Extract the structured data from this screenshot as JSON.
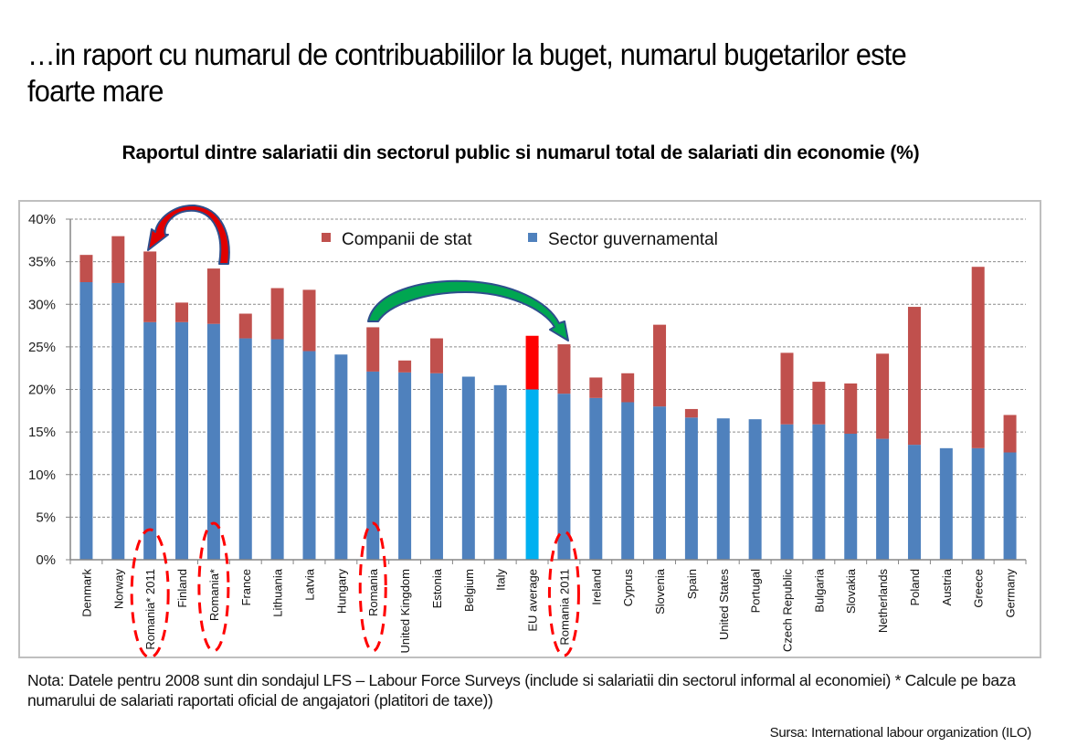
{
  "slide": {
    "title": "…in raport cu numarul de contribuabililor la buget, numarul bugetarilor este foarte mare",
    "note": "Nota: Datele pentru 2008 sunt din sondajul LFS – Labour Force Surveys (include si salariatii din sectorul informal al economiei) * Calcule pe baza numarului de salariati raportati oficial de angajatori (platitori de taxe))",
    "source": "Sursa: International labour organization (ILO)"
  },
  "chart_data": {
    "type": "bar",
    "stacked": true,
    "title": "Raportul dintre salariatii din sectorul public si numarul total de salariati din economie (%)",
    "xlabel": "",
    "ylabel": "",
    "ylim": [
      0,
      40
    ],
    "yticks": [
      "0%",
      "5%",
      "10%",
      "15%",
      "20%",
      "25%",
      "30%",
      "35%",
      "40%"
    ],
    "grid": true,
    "legend_position": "top-center",
    "categories": [
      "Denmark",
      "Norway",
      "Romania* 2011",
      "Finland",
      "Romania*",
      "France",
      "Lithuania",
      "Latvia",
      "Hungary",
      "Romania",
      "United Kingdom",
      "Estonia",
      "Belgium",
      "Italy",
      "EU average",
      "Romania 2011",
      "Ireland",
      "Cyprus",
      "Slovenia",
      "Spain",
      "United States",
      "Portugal",
      "Czech Republic",
      "Bulgaria",
      "Slovakia",
      "Netherlands",
      "Poland",
      "Austria",
      "Greece",
      "Germany"
    ],
    "series": [
      {
        "name": "Sector guvernamental",
        "color": "#4F81BD",
        "values": [
          32.6,
          32.5,
          27.9,
          27.9,
          27.7,
          26.0,
          25.9,
          24.5,
          24.1,
          22.1,
          22.0,
          21.9,
          21.5,
          20.5,
          20.0,
          19.5,
          19.0,
          18.5,
          18.0,
          16.7,
          16.6,
          16.5,
          15.9,
          15.9,
          14.8,
          14.2,
          13.5,
          13.1,
          13.1,
          12.6
        ]
      },
      {
        "name": "Companii de stat",
        "color": "#C0504D",
        "values": [
          3.2,
          5.5,
          8.3,
          2.3,
          6.5,
          2.9,
          6.0,
          7.2,
          0,
          5.2,
          1.4,
          4.1,
          0,
          0,
          6.3,
          5.8,
          2.4,
          3.4,
          9.6,
          1.0,
          0,
          0,
          8.4,
          5.0,
          5.9,
          10.0,
          16.2,
          0,
          21.3,
          4.4
        ]
      }
    ],
    "highlight": {
      "category": "EU average",
      "colors": {
        "Sector guvernamental": "#00B0F0",
        "Companii de stat": "#FF0000"
      }
    },
    "annotations": [
      {
        "type": "curved-arrow",
        "color": "#FF0000",
        "from": "Romania*",
        "to": "Romania* 2011"
      },
      {
        "type": "curved-arrow",
        "color": "#00A651",
        "from": "Romania",
        "to": "Romania 2011"
      },
      {
        "type": "dashed-ellipse",
        "color": "#FF0000",
        "around": [
          "Romania* 2011",
          "Romania*",
          "Romania",
          "Romania 2011"
        ]
      }
    ]
  }
}
